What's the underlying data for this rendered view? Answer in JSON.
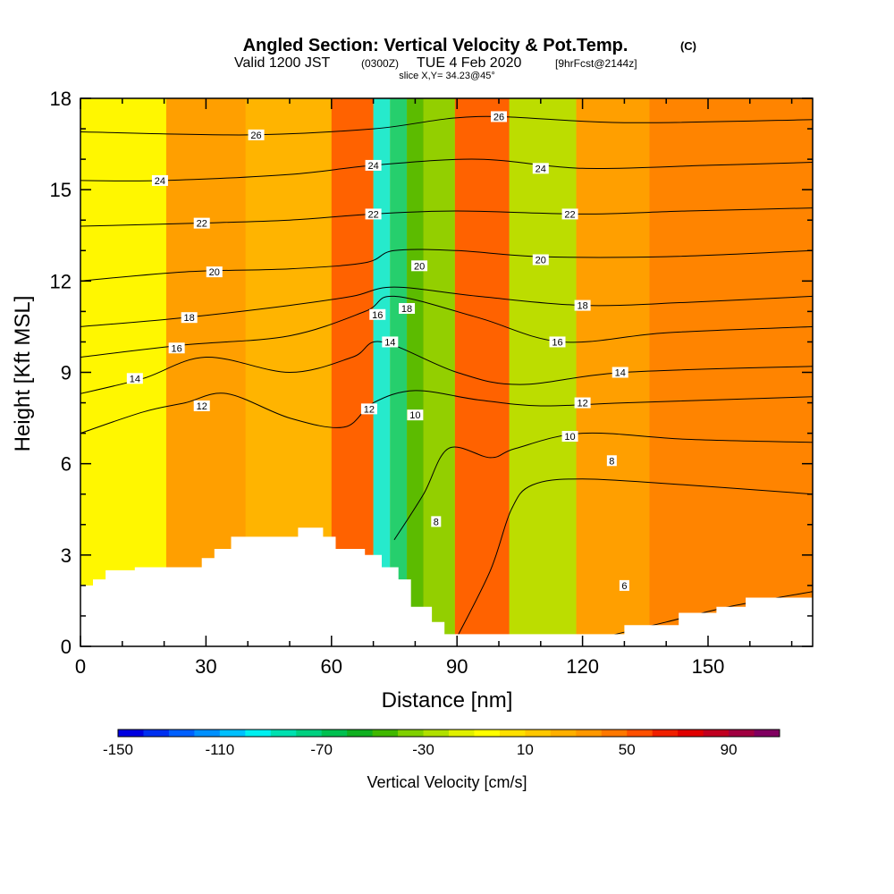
{
  "title": {
    "main": "Angled Section: Vertical Velocity & Pot.Temp.",
    "main_suffix": "(C)",
    "valid_prefix": "Valid 1200 JST",
    "valid_zulu": "(0300Z)",
    "valid_date": "TUE 4 Feb 2020",
    "forecast": "[9hrFcst@2144z]",
    "slice": "slice X,Y= 34.23@45°"
  },
  "chart_data": {
    "type": "heatmap",
    "xlabel": "Distance [nm]",
    "ylabel": "Height [Kft MSL]",
    "xlim": [
      0,
      175
    ],
    "ylim": [
      0,
      18
    ],
    "xticks": [
      0,
      30,
      60,
      90,
      120,
      150
    ],
    "yticks": [
      0,
      3,
      6,
      9,
      12,
      15,
      18
    ],
    "colorbar": {
      "label": "Vertical Velocity [cm/s]",
      "min": -150,
      "max": 110,
      "step": 10,
      "tick_values": [
        -150,
        -110,
        -70,
        -30,
        10,
        50,
        90
      ],
      "colors": [
        "#0000e0",
        "#0030f0",
        "#0060ff",
        "#0090ff",
        "#00c0ff",
        "#00f0f0",
        "#00e0b0",
        "#00d080",
        "#00c050",
        "#10b020",
        "#40b800",
        "#80d000",
        "#b0e000",
        "#e0f000",
        "#ffff00",
        "#ffe000",
        "#ffc800",
        "#ffb000",
        "#ff9800",
        "#ff7800",
        "#ff5000",
        "#f02000",
        "#e00000",
        "#c00020",
        "#a00040",
        "#800060"
      ]
    },
    "vertical_velocity_bands": [
      {
        "x": 14,
        "value": -10
      },
      {
        "x": 27,
        "value": 30
      },
      {
        "x": 52,
        "value": 20
      },
      {
        "x": 68,
        "value": 50
      },
      {
        "x": 72,
        "value": -100
      },
      {
        "x": 76,
        "value": -80
      },
      {
        "x": 80,
        "value": -50
      },
      {
        "x": 84,
        "value": -40
      },
      {
        "x": 95,
        "value": 55
      },
      {
        "x": 110,
        "value": -30
      },
      {
        "x": 127,
        "value": 30
      },
      {
        "x": 145,
        "value": 40
      }
    ],
    "potential_temperature_contours": [
      {
        "theta": 6,
        "points": [
          [
            125,
            0.3
          ],
          [
            140,
            0.8
          ],
          [
            155,
            1.3
          ],
          [
            175,
            1.8
          ]
        ]
      },
      {
        "theta": 8,
        "points": [
          [
            90,
            0.3
          ],
          [
            98,
            2.5
          ],
          [
            103,
            4.5
          ],
          [
            108,
            5.3
          ],
          [
            120,
            5.5
          ],
          [
            145,
            5.3
          ],
          [
            175,
            5.0
          ]
        ]
      },
      {
        "theta": 10,
        "points": [
          [
            75,
            3.5
          ],
          [
            82,
            5.0
          ],
          [
            88,
            6.5
          ],
          [
            98,
            6.2
          ],
          [
            104,
            6.5
          ],
          [
            120,
            7.0
          ],
          [
            145,
            6.8
          ],
          [
            175,
            6.7
          ]
        ]
      },
      {
        "theta": 12,
        "points": [
          [
            0,
            7.0
          ],
          [
            15,
            7.7
          ],
          [
            25,
            8.0
          ],
          [
            35,
            8.3
          ],
          [
            50,
            7.5
          ],
          [
            63,
            7.2
          ],
          [
            70,
            8.0
          ],
          [
            80,
            8.4
          ],
          [
            95,
            8.1
          ],
          [
            110,
            7.9
          ],
          [
            130,
            8.0
          ],
          [
            175,
            8.2
          ]
        ]
      },
      {
        "theta": 14,
        "points": [
          [
            0,
            8.3
          ],
          [
            15,
            8.8
          ],
          [
            30,
            9.5
          ],
          [
            50,
            9.0
          ],
          [
            65,
            9.5
          ],
          [
            72,
            10.0
          ],
          [
            90,
            9.0
          ],
          [
            105,
            8.6
          ],
          [
            130,
            9.0
          ],
          [
            175,
            9.2
          ]
        ]
      },
      {
        "theta": 16,
        "points": [
          [
            0,
            9.5
          ],
          [
            25,
            9.9
          ],
          [
            50,
            10.2
          ],
          [
            68,
            11.0
          ],
          [
            75,
            11.5
          ],
          [
            95,
            10.8
          ],
          [
            115,
            10.0
          ],
          [
            140,
            10.3
          ],
          [
            175,
            10.5
          ]
        ]
      },
      {
        "theta": 18,
        "points": [
          [
            0,
            10.5
          ],
          [
            25,
            10.8
          ],
          [
            50,
            11.2
          ],
          [
            65,
            11.5
          ],
          [
            75,
            11.8
          ],
          [
            95,
            11.5
          ],
          [
            120,
            11.2
          ],
          [
            145,
            11.3
          ],
          [
            175,
            11.5
          ]
        ]
      },
      {
        "theta": 20,
        "points": [
          [
            0,
            12.0
          ],
          [
            25,
            12.3
          ],
          [
            50,
            12.4
          ],
          [
            68,
            12.6
          ],
          [
            75,
            13.0
          ],
          [
            90,
            13.0
          ],
          [
            110,
            12.8
          ],
          [
            140,
            12.8
          ],
          [
            175,
            13.0
          ]
        ]
      },
      {
        "theta": 22,
        "points": [
          [
            0,
            13.8
          ],
          [
            28,
            13.9
          ],
          [
            50,
            14.0
          ],
          [
            70,
            14.2
          ],
          [
            90,
            14.3
          ],
          [
            120,
            14.2
          ],
          [
            145,
            14.3
          ],
          [
            175,
            14.4
          ]
        ]
      },
      {
        "theta": 24,
        "points": [
          [
            0,
            15.3
          ],
          [
            20,
            15.3
          ],
          [
            50,
            15.5
          ],
          [
            70,
            15.8
          ],
          [
            95,
            16.0
          ],
          [
            120,
            15.7
          ],
          [
            150,
            15.8
          ],
          [
            175,
            15.9
          ]
        ]
      },
      {
        "theta": 26,
        "points": [
          [
            0,
            16.9
          ],
          [
            40,
            16.8
          ],
          [
            70,
            17.0
          ],
          [
            95,
            17.4
          ],
          [
            130,
            17.2
          ],
          [
            175,
            17.3
          ]
        ]
      }
    ],
    "contour_labels": [
      {
        "text": "26",
        "x": 42,
        "y": 16.8
      },
      {
        "text": "26",
        "x": 100,
        "y": 17.4
      },
      {
        "text": "24",
        "x": 19,
        "y": 15.3
      },
      {
        "text": "24",
        "x": 70,
        "y": 15.8
      },
      {
        "text": "24",
        "x": 110,
        "y": 15.7
      },
      {
        "text": "22",
        "x": 29,
        "y": 13.9
      },
      {
        "text": "22",
        "x": 70,
        "y": 14.2
      },
      {
        "text": "22",
        "x": 117,
        "y": 14.2
      },
      {
        "text": "20",
        "x": 32,
        "y": 12.3
      },
      {
        "text": "20",
        "x": 81,
        "y": 12.5
      },
      {
        "text": "20",
        "x": 110,
        "y": 12.7
      },
      {
        "text": "18",
        "x": 26,
        "y": 10.8
      },
      {
        "text": "18",
        "x": 78,
        "y": 11.1
      },
      {
        "text": "18",
        "x": 120,
        "y": 11.2
      },
      {
        "text": "16",
        "x": 23,
        "y": 9.8
      },
      {
        "text": "16",
        "x": 71,
        "y": 10.9
      },
      {
        "text": "16",
        "x": 114,
        "y": 10.0
      },
      {
        "text": "14",
        "x": 13,
        "y": 8.8
      },
      {
        "text": "14",
        "x": 74,
        "y": 10.0
      },
      {
        "text": "14",
        "x": 129,
        "y": 9.0
      },
      {
        "text": "12",
        "x": 29,
        "y": 7.9
      },
      {
        "text": "12",
        "x": 69,
        "y": 7.8
      },
      {
        "text": "12",
        "x": 120,
        "y": 8.0
      },
      {
        "text": "10",
        "x": 80,
        "y": 7.6
      },
      {
        "text": "10",
        "x": 117,
        "y": 6.9
      },
      {
        "text": "8",
        "x": 127,
        "y": 6.1
      },
      {
        "text": "8",
        "x": 85,
        "y": 4.1
      },
      {
        "text": "6",
        "x": 130,
        "y": 2.0
      }
    ],
    "terrain_top": [
      [
        0,
        2.0
      ],
      [
        3,
        2.0
      ],
      [
        3,
        2.2
      ],
      [
        6,
        2.2
      ],
      [
        6,
        2.5
      ],
      [
        13,
        2.5
      ],
      [
        13,
        2.6
      ],
      [
        29,
        2.6
      ],
      [
        29,
        2.9
      ],
      [
        32,
        2.9
      ],
      [
        32,
        3.2
      ],
      [
        36,
        3.2
      ],
      [
        36,
        3.6
      ],
      [
        52,
        3.6
      ],
      [
        52,
        3.9
      ],
      [
        58,
        3.9
      ],
      [
        58,
        3.6
      ],
      [
        61,
        3.6
      ],
      [
        61,
        3.2
      ],
      [
        68,
        3.2
      ],
      [
        68,
        3.0
      ],
      [
        72,
        3.0
      ],
      [
        72,
        2.6
      ],
      [
        76,
        2.6
      ],
      [
        76,
        2.2
      ],
      [
        79,
        2.2
      ],
      [
        79,
        1.3
      ],
      [
        84,
        1.3
      ],
      [
        84,
        0.8
      ],
      [
        87,
        0.8
      ],
      [
        87,
        0.4
      ],
      [
        130,
        0.4
      ],
      [
        130,
        0.7
      ],
      [
        143,
        0.7
      ],
      [
        143,
        1.1
      ],
      [
        152,
        1.1
      ],
      [
        152,
        1.3
      ],
      [
        159,
        1.3
      ],
      [
        159,
        1.6
      ],
      [
        175,
        1.6
      ]
    ]
  }
}
